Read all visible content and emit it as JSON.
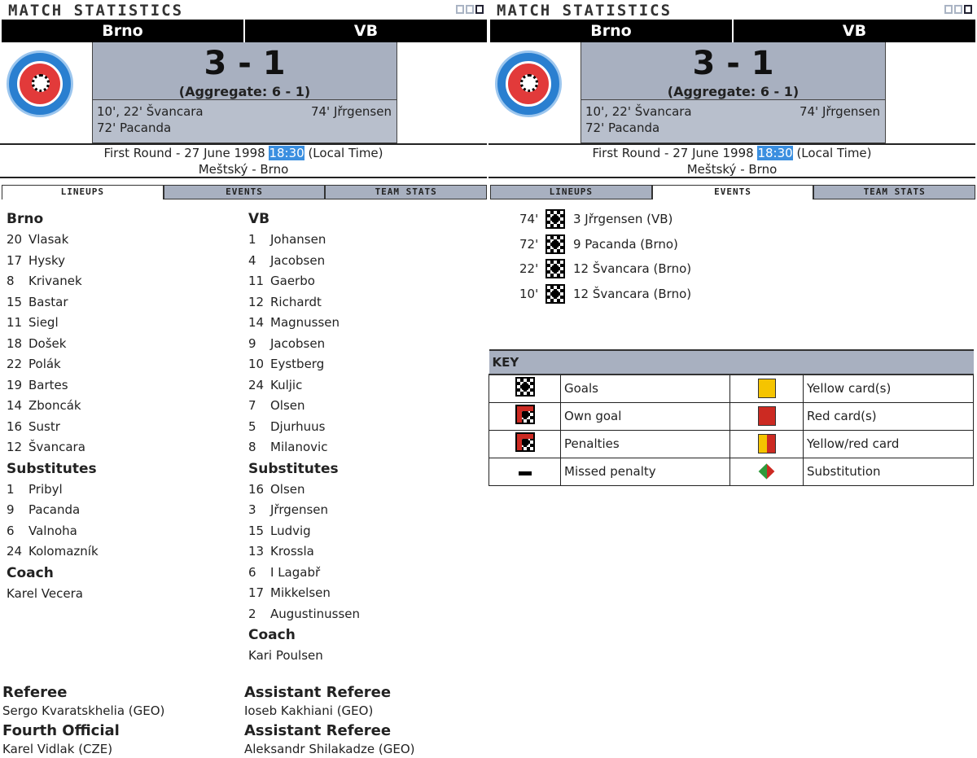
{
  "header": {
    "title": "MATCH STATISTICS",
    "home": "Brno",
    "away": "VB",
    "score": "3 - 1",
    "aggregate": "(Aggregate: 6 - 1)",
    "home_scorers": [
      "10', 22' Švancara",
      "72' Pacanda"
    ],
    "away_scorers": [
      "74' Jřrgensen"
    ],
    "round_date": "First Round - 27 June 1998 ",
    "time": "18:30",
    "local": " (Local Time)",
    "venue": "Meštský - Brno"
  },
  "tabs": [
    "LINEUPS",
    "EVENTS",
    "TEAM STATS"
  ],
  "lineups": {
    "home": {
      "team": "Brno",
      "starters": [
        [
          "20",
          "Vlasak"
        ],
        [
          "17",
          "Hysky"
        ],
        [
          "8",
          "Krivanek"
        ],
        [
          "15",
          "Bastar"
        ],
        [
          "11",
          "Siegl"
        ],
        [
          "18",
          "Došek"
        ],
        [
          "22",
          "Polák"
        ],
        [
          "19",
          "Bartes"
        ],
        [
          "14",
          "Zboncák"
        ],
        [
          "16",
          "Sustr"
        ],
        [
          "12",
          "Švancara"
        ]
      ],
      "subs_label": "Substitutes",
      "subs": [
        [
          "1",
          "Pribyl"
        ],
        [
          "9",
          "Pacanda"
        ],
        [
          "6",
          "Valnoha"
        ],
        [
          "24",
          "Kolomazník"
        ]
      ],
      "coach_label": "Coach",
      "coach": "Karel Vecera"
    },
    "away": {
      "team": "VB",
      "starters": [
        [
          "1",
          "Johansen"
        ],
        [
          "4",
          "Jacobsen"
        ],
        [
          "11",
          "Gaerbo"
        ],
        [
          "12",
          "Richardt"
        ],
        [
          "14",
          "Magnussen"
        ],
        [
          "9",
          "Jacobsen"
        ],
        [
          "10",
          "Eystberg"
        ],
        [
          "24",
          "Kuljic"
        ],
        [
          "7",
          "Olsen"
        ],
        [
          "5",
          "Djurhuus"
        ],
        [
          "8",
          "Milanovic"
        ]
      ],
      "subs_label": "Substitutes",
      "subs": [
        [
          "16",
          "Olsen"
        ],
        [
          "3",
          "Jřrgensen"
        ],
        [
          "15",
          "Ludvig"
        ],
        [
          "13",
          "Krossla"
        ],
        [
          "6",
          "I Lagabř"
        ],
        [
          "17",
          "Mikkelsen"
        ],
        [
          "2",
          "Augustinussen"
        ]
      ],
      "coach_label": "Coach",
      "coach": "Kari Poulsen"
    }
  },
  "officials": [
    {
      "role": "Referee",
      "name": "Sergo Kvaratskhelia (GEO)"
    },
    {
      "role": "Assistant Referee",
      "name": "Ioseb Kakhiani (GEO)"
    },
    {
      "role": "Fourth Official",
      "name": "Karel Vidlak (CZE)"
    },
    {
      "role": "Assistant Referee",
      "name": "Aleksandr Shilakadze (GEO)"
    }
  ],
  "events": [
    {
      "minute": "74'",
      "icon": "goal-icon",
      "text": "3 Jřrgensen (VB)"
    },
    {
      "minute": "72'",
      "icon": "goal-icon",
      "text": "9 Pacanda (Brno)"
    },
    {
      "minute": "22'",
      "icon": "goal-icon",
      "text": "12 Švancara (Brno)"
    },
    {
      "minute": "10'",
      "icon": "goal-icon",
      "text": "12 Švancara (Brno)"
    }
  ],
  "key": {
    "title": "KEY",
    "rows": [
      [
        "Goals",
        "Yellow card(s)"
      ],
      [
        "Own goal",
        "Red card(s)"
      ],
      [
        "Penalties",
        "Yellow/red card"
      ],
      [
        "Missed penalty",
        "Substitution"
      ]
    ],
    "colors": {
      "yellow": "#f5c400",
      "red": "#cc2a22",
      "green": "#2e9a3a"
    }
  }
}
